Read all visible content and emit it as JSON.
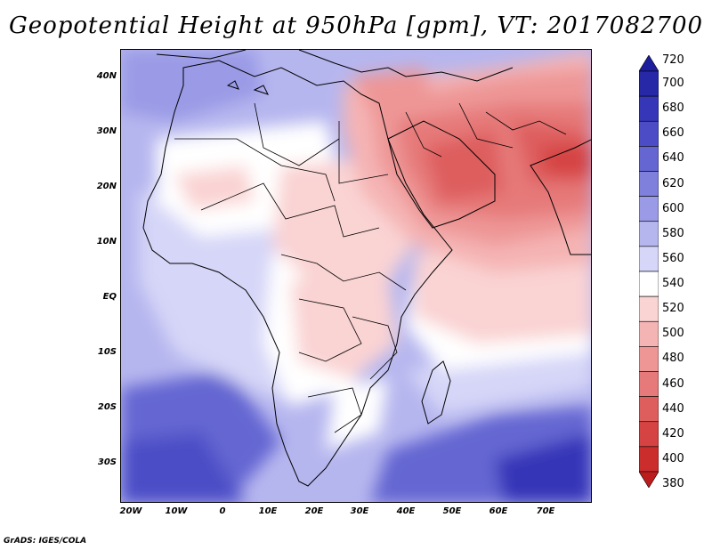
{
  "title": "Geopotential Height at 950hPa [gpm], VT: 2017082700",
  "footer": "GrADS: IGES/COLA",
  "map": {
    "lat_labels": [
      "40N",
      "30N",
      "20N",
      "10N",
      "EQ",
      "10S",
      "20S",
      "30S"
    ],
    "lon_labels": [
      "20W",
      "10W",
      "0",
      "10E",
      "20E",
      "30E",
      "40E",
      "50E",
      "60E",
      "70E"
    ]
  },
  "colorbar": {
    "labels": [
      "720",
      "700",
      "680",
      "660",
      "640",
      "620",
      "600",
      "580",
      "560",
      "540",
      "520",
      "500",
      "480",
      "460",
      "440",
      "420",
      "400",
      "380"
    ],
    "colors": [
      "#1d1e9e",
      "#2728a8",
      "#3536b8",
      "#4c4dc6",
      "#6566d2",
      "#7f80dc",
      "#9a9ae6",
      "#b6b6ef",
      "#d6d6f8",
      "#ffffff",
      "#fad3d3",
      "#f5b4b4",
      "#ee9696",
      "#e67979",
      "#de5d5d",
      "#d54343",
      "#cb2d2d",
      "#bd1c1c"
    ],
    "top_arrow_color": "#1d1e9e",
    "bottom_arrow_color": "#bd1c1c"
  }
}
